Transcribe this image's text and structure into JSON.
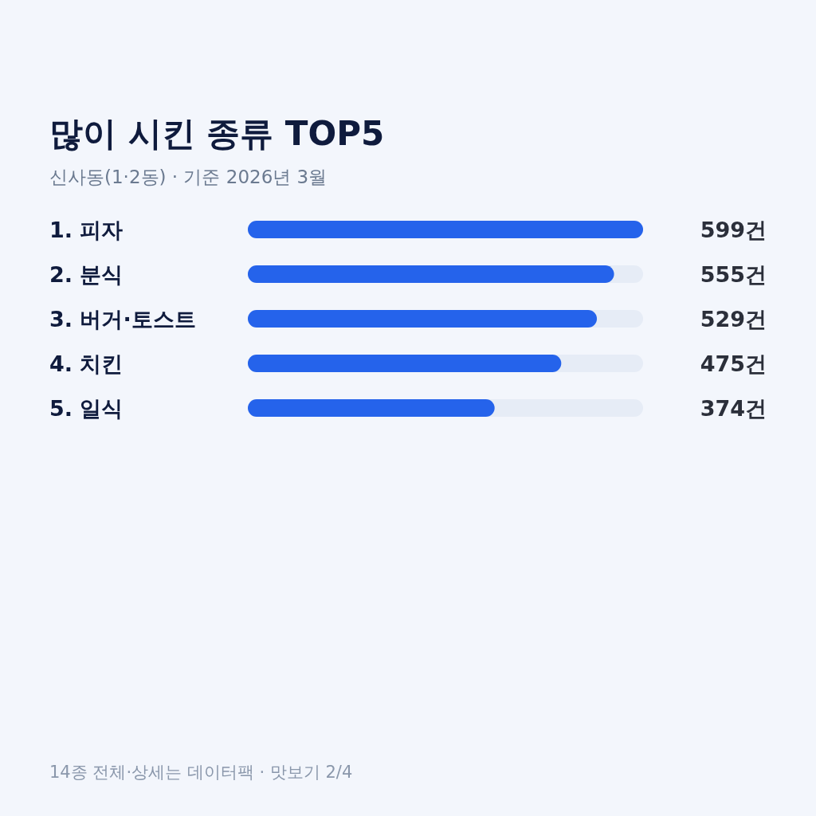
{
  "chart_data": {
    "type": "bar",
    "orientation": "horizontal",
    "title": "많이 시킨 종류 TOP5",
    "subtitle": "신사동(1·2동) · 기준 2026년 3월",
    "categories": [
      "1. 피자",
      "2. 분식",
      "3. 버거·토스트",
      "4. 치킨",
      "5. 일식"
    ],
    "values": [
      599,
      555,
      529,
      475,
      374
    ],
    "value_labels": [
      "599건",
      "555건",
      "529건",
      "475건",
      "374건"
    ],
    "color": "#2563eb",
    "xlim": [
      0,
      599
    ],
    "annotations": [
      "14종 전체·상세는 데이터팩 · 맛보기 2/4"
    ]
  }
}
